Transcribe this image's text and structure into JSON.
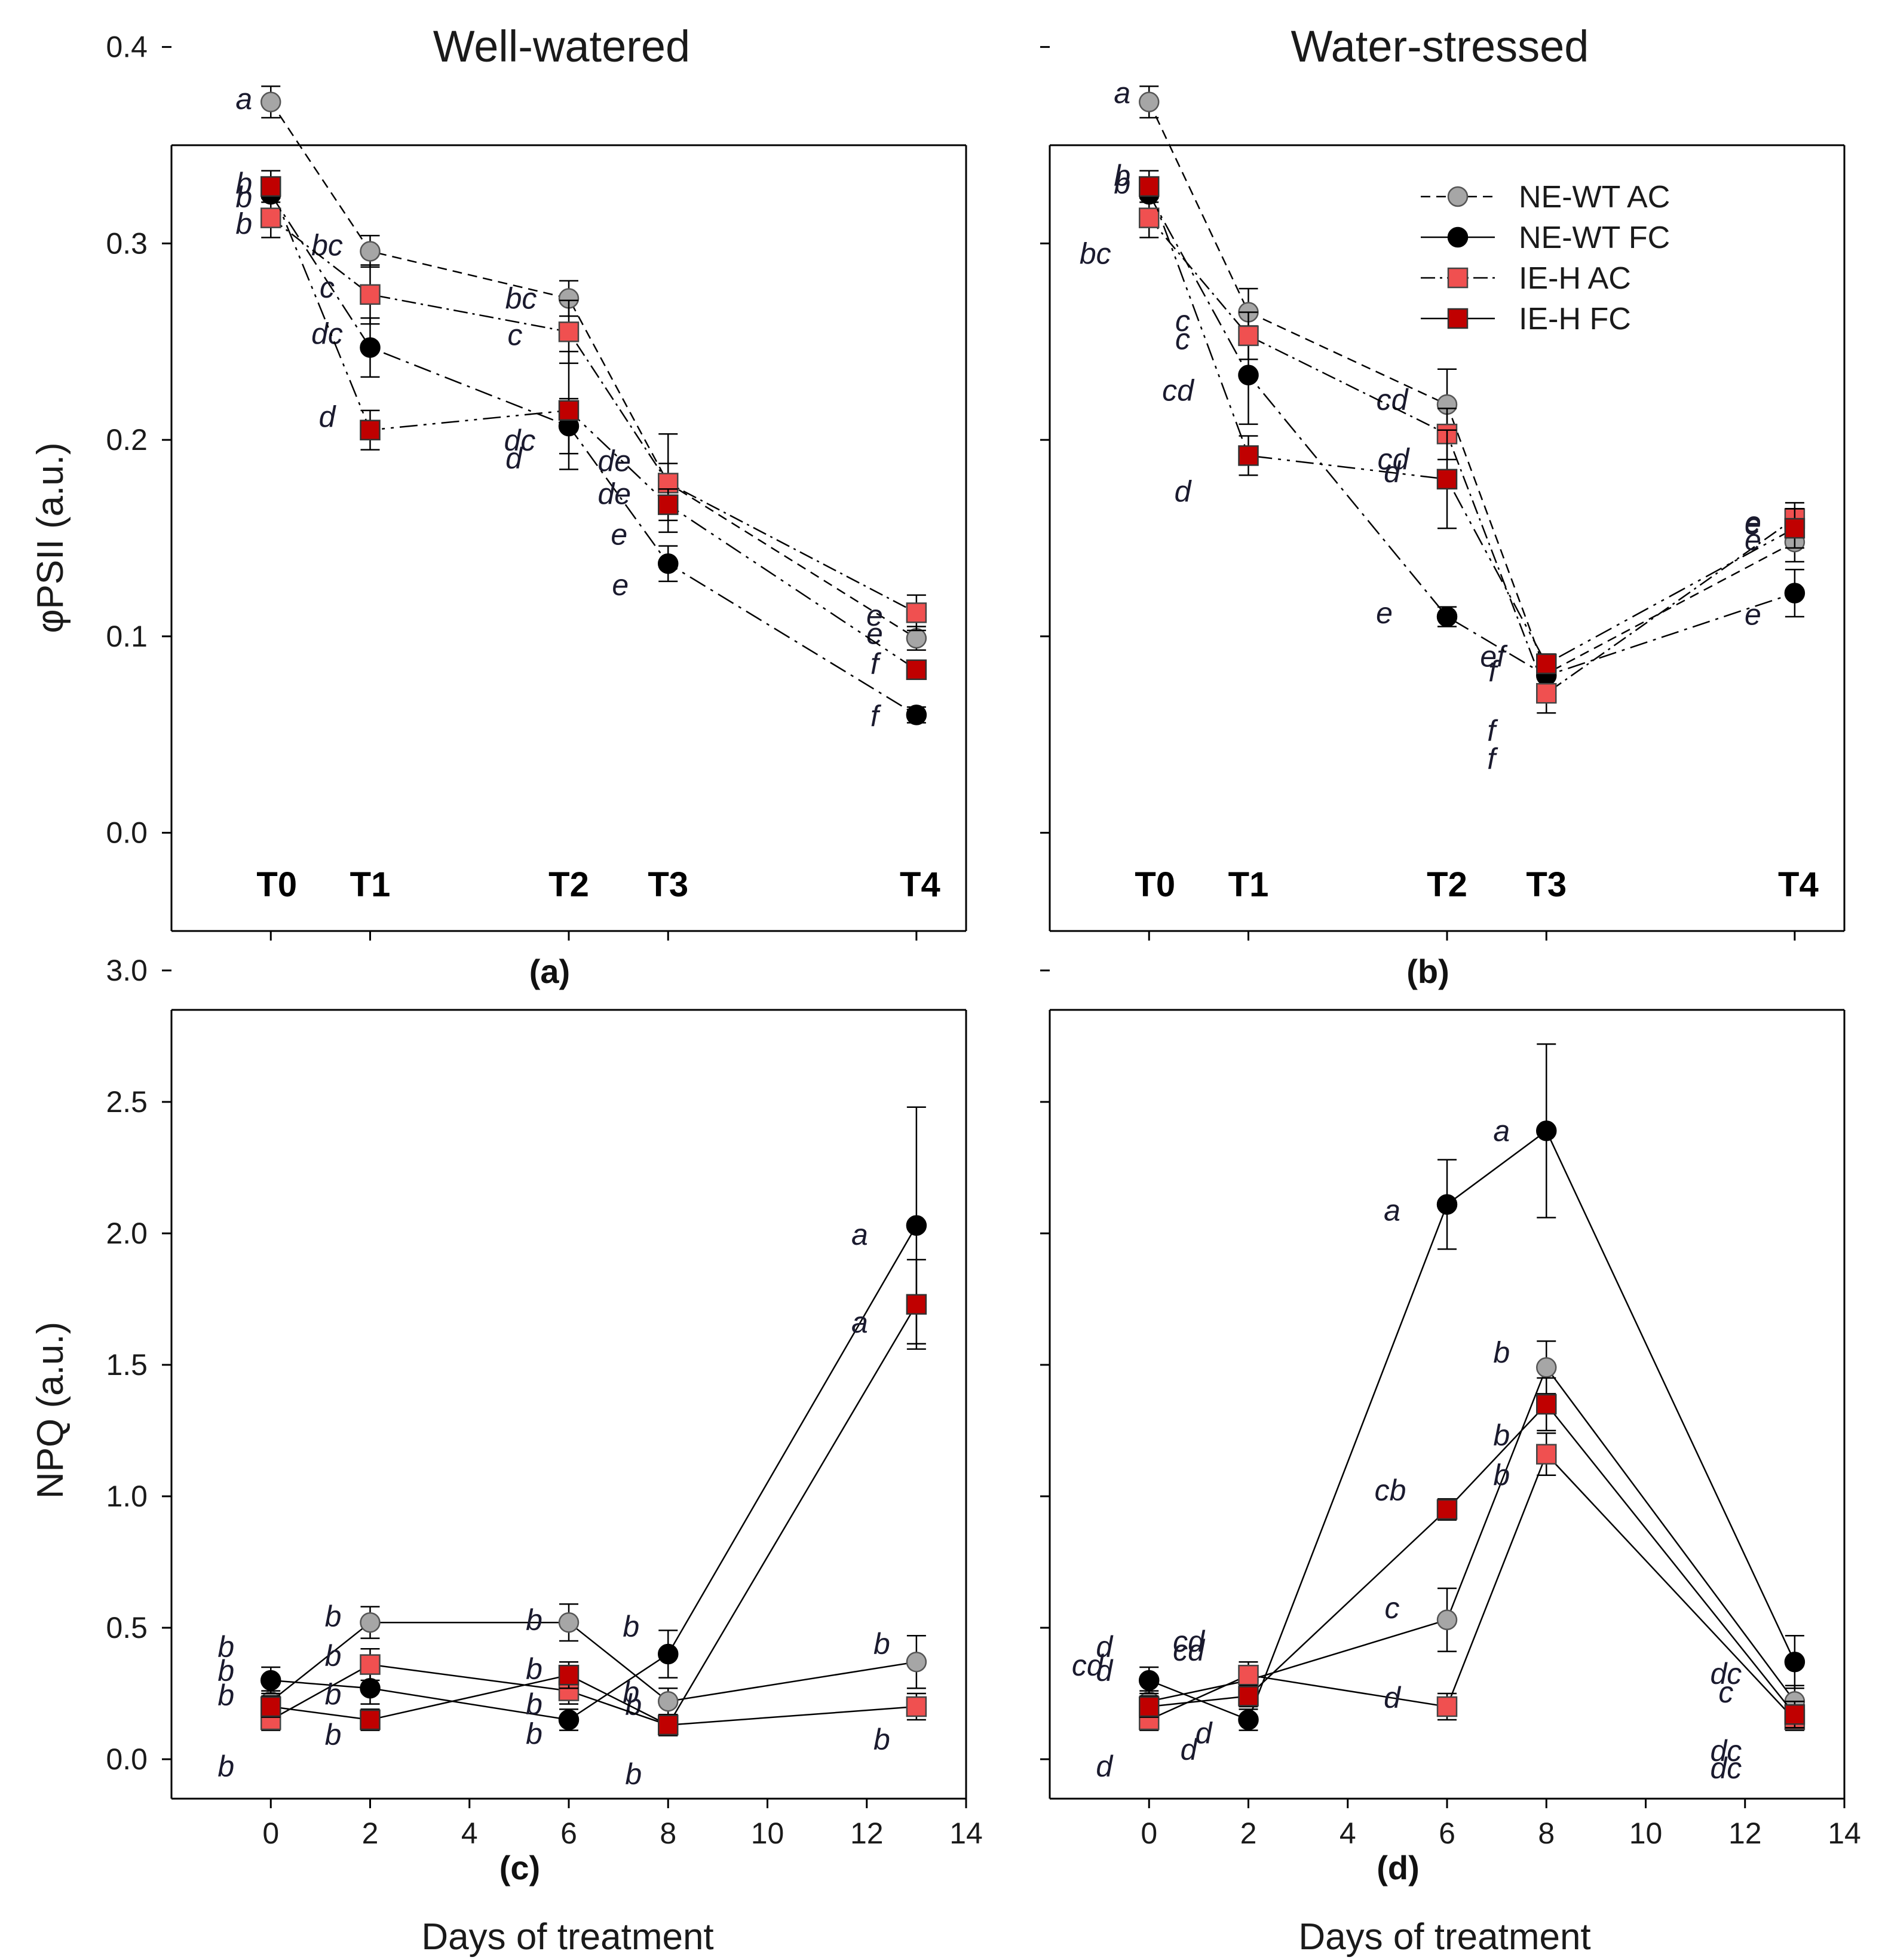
{
  "colors": {
    "ne_wt_ac": "#a6a6a6",
    "ne_wt_fc": "#000000",
    "ie_h_ac": "#f05050",
    "ie_h_fc": "#c00000"
  },
  "figure": {
    "columns": [
      "Well-watered",
      "Water-stressed"
    ],
    "legend": [
      "NE-WT AC",
      "NE-WT FC",
      "IE-H AC",
      "IE-H FC"
    ],
    "xlabel": "Days of treatment",
    "ylabel_top": "φPSII  (a.u.)",
    "ylabel_bottom": "NPQ (a.u.)",
    "panel_labels": [
      "(a)",
      "(b)",
      "(c)",
      "(d)"
    ],
    "time_labels": [
      "T0",
      "T1",
      "T2",
      "T3",
      "T4"
    ]
  },
  "chart_data": [
    {
      "panel": "(a)",
      "type": "line",
      "title": "Well-watered",
      "xlabel": "",
      "ylabel": "φPSII  (a.u.)",
      "xlim": [
        -2,
        14
      ],
      "ylim": [
        -0.05,
        0.35
      ],
      "yticks": [
        0.0,
        0.1,
        0.2,
        0.3,
        0.4
      ],
      "yticklabels": [
        "0.0",
        "0.1",
        "0.2",
        "0.3",
        "0.4"
      ],
      "x": [
        0,
        2,
        6,
        8,
        13
      ],
      "series": [
        {
          "name": "NE-WT AC",
          "values": [
            0.372,
            0.296,
            0.272,
            0.178,
            0.099
          ],
          "errors": [
            0.008,
            0.008,
            0.009,
            0.025,
            0.006
          ],
          "labels": [
            {
              "x": 0,
              "text": "a"
            },
            {
              "x": 2,
              "text": "bc"
            },
            {
              "x": 6,
              "text": "bc"
            },
            {
              "x": 8,
              "text": "de"
            },
            {
              "x": 13,
              "text": "e"
            }
          ]
        },
        {
          "name": "NE-WT FC",
          "values": [
            0.325,
            0.247,
            0.207,
            0.137,
            0.06
          ],
          "errors": [
            0.008,
            0.015,
            0.014,
            0.009,
            0.004
          ],
          "labels": [
            {
              "x": 0,
              "text": "b"
            },
            {
              "x": 2,
              "text": "dc"
            },
            {
              "x": 6,
              "text": "dc"
            },
            {
              "x": 8,
              "text": "e"
            },
            {
              "x": 13,
              "text": "f"
            }
          ]
        },
        {
          "name": "IE-H AC",
          "values": [
            0.313,
            0.274,
            0.255,
            0.178,
            0.112
          ],
          "errors": [
            0.01,
            0.015,
            0.016,
            0.01,
            0.009
          ],
          "labels": [
            {
              "x": 0,
              "text": "b"
            },
            {
              "x": 2,
              "text": "c"
            },
            {
              "x": 6,
              "text": "c"
            },
            {
              "x": 8,
              "text": "de"
            },
            {
              "x": 13,
              "text": "e"
            }
          ]
        },
        {
          "name": "IE-H FC",
          "values": [
            0.329,
            0.205,
            0.215,
            0.167,
            0.083
          ],
          "errors": [
            0.008,
            0.01,
            0.03,
            0.008,
            0.004
          ],
          "labels": [
            {
              "x": 0,
              "text": "b"
            },
            {
              "x": 2,
              "text": "d"
            },
            {
              "x": 6,
              "text": "d"
            },
            {
              "x": 8,
              "text": "e"
            },
            {
              "x": 13,
              "text": "f"
            }
          ]
        }
      ]
    },
    {
      "panel": "(b)",
      "type": "line",
      "title": "Water-stressed",
      "xlabel": "",
      "ylabel": "",
      "xlim": [
        -2,
        14
      ],
      "ylim": [
        -0.05,
        0.35
      ],
      "yticks": [
        0.0,
        0.1,
        0.2,
        0.3,
        0.4
      ],
      "yticklabels": [
        "",
        "",
        "",
        "",
        ""
      ],
      "x": [
        0,
        2,
        6,
        8,
        13
      ],
      "series": [
        {
          "name": "NE-WT AC",
          "values": [
            0.372,
            0.265,
            0.218,
            0.081,
            0.148
          ],
          "errors": [
            0.008,
            0.012,
            0.018,
            0.006,
            0.01
          ],
          "labels": [
            {
              "x": 0,
              "text": "a"
            },
            {
              "x": 2,
              "text": "c"
            },
            {
              "x": 6,
              "text": "cd"
            },
            {
              "x": 8,
              "text": "ef"
            },
            {
              "x": 13,
              "text": "e"
            }
          ]
        },
        {
          "name": "NE-WT FC",
          "values": [
            0.325,
            0.233,
            0.11,
            0.08,
            0.122
          ],
          "errors": [
            0.008,
            0.025,
            0.005,
            0.006,
            0.012
          ],
          "labels": [
            {
              "x": 0,
              "text": "b"
            },
            {
              "x": 2,
              "text": "cd"
            },
            {
              "x": 6,
              "text": "e"
            },
            {
              "x": 8,
              "text": "f"
            },
            {
              "x": 13,
              "text": "e"
            }
          ]
        },
        {
          "name": "IE-H AC",
          "values": [
            0.313,
            0.253,
            0.203,
            0.071,
            0.16
          ],
          "errors": [
            0.01,
            0.012,
            0.013,
            0.01,
            0.008
          ],
          "labels": [
            {
              "x": 0,
              "text": "bc"
            },
            {
              "x": 2,
              "text": "c"
            },
            {
              "x": 6,
              "text": "cd"
            },
            {
              "x": 8,
              "text": "f"
            },
            {
              "x": 13,
              "text": "e"
            }
          ]
        },
        {
          "name": "IE-H FC",
          "values": [
            0.329,
            0.192,
            0.18,
            0.086,
            0.155
          ],
          "errors": [
            0.008,
            0.01,
            0.025,
            0.005,
            0.01
          ],
          "labels": [
            {
              "x": 0,
              "text": "b"
            },
            {
              "x": 2,
              "text": "d"
            },
            {
              "x": 6,
              "text": "d"
            },
            {
              "x": 8,
              "text": "f"
            },
            {
              "x": 13,
              "text": "e"
            }
          ]
        }
      ]
    },
    {
      "panel": "(c)",
      "type": "line",
      "title": "",
      "xlabel": "Days of treatment",
      "ylabel": "NPQ (a.u.)",
      "xlim": [
        -2,
        14
      ],
      "ylim": [
        -0.15,
        2.85
      ],
      "xticks": [
        0,
        2,
        4,
        6,
        8,
        10,
        12,
        14
      ],
      "yticks": [
        0.0,
        0.5,
        1.0,
        1.5,
        2.0,
        2.5,
        3.0
      ],
      "yticklabels": [
        "0.0",
        "0.5",
        "1.0",
        "1.5",
        "2.0",
        "2.5",
        "3.0"
      ],
      "x": [
        0,
        2,
        6,
        8,
        13
      ],
      "series": [
        {
          "name": "NE-WT AC",
          "values": [
            0.22,
            0.52,
            0.52,
            0.22,
            0.37
          ],
          "errors": [
            0.04,
            0.06,
            0.07,
            0.05,
            0.1
          ],
          "labels": [
            {
              "x": 0,
              "text": "b"
            },
            {
              "x": 2,
              "text": "b"
            },
            {
              "x": 6,
              "text": "b"
            },
            {
              "x": 8,
              "text": "b"
            },
            {
              "x": 13,
              "text": "b"
            }
          ]
        },
        {
          "name": "NE-WT FC",
          "values": [
            0.3,
            0.27,
            0.15,
            0.4,
            2.03
          ],
          "errors": [
            0.05,
            0.06,
            0.04,
            0.09,
            0.45
          ],
          "labels": [
            {
              "x": 0,
              "text": "b"
            },
            {
              "x": 2,
              "text": "b"
            },
            {
              "x": 6,
              "text": "b"
            },
            {
              "x": 8,
              "text": "b"
            },
            {
              "x": 13,
              "text": "a"
            }
          ]
        },
        {
          "name": "IE-H AC",
          "values": [
            0.15,
            0.36,
            0.26,
            0.13,
            0.2
          ],
          "errors": [
            0.04,
            0.06,
            0.05,
            0.04,
            0.05
          ],
          "labels": [
            {
              "x": 0,
              "text": "b"
            },
            {
              "x": 2,
              "text": "b"
            },
            {
              "x": 6,
              "text": "b"
            },
            {
              "x": 8,
              "text": "b"
            },
            {
              "x": 13,
              "text": "b"
            }
          ]
        },
        {
          "name": "IE-H FC",
          "values": [
            0.2,
            0.15,
            0.32,
            0.13,
            1.73
          ],
          "errors": [
            0.04,
            0.04,
            0.05,
            0.04,
            0.17
          ],
          "labels": [
            {
              "x": 0,
              "text": "b"
            },
            {
              "x": 2,
              "text": "b"
            },
            {
              "x": 6,
              "text": "b"
            },
            {
              "x": 8,
              "text": "b"
            },
            {
              "x": 13,
              "text": "a"
            }
          ]
        }
      ]
    },
    {
      "panel": "(d)",
      "type": "line",
      "title": "",
      "xlabel": "Days of treatment",
      "ylabel": "",
      "xlim": [
        -2,
        14
      ],
      "ylim": [
        -0.15,
        2.85
      ],
      "xticks": [
        0,
        2,
        4,
        6,
        8,
        10,
        12,
        14
      ],
      "yticks": [
        0.0,
        0.5,
        1.0,
        1.5,
        2.0,
        2.5,
        3.0
      ],
      "yticklabels": [
        "",
        "",
        "",
        "",
        "",
        "",
        ""
      ],
      "x": [
        0,
        2,
        6,
        8,
        13
      ],
      "series": [
        {
          "name": "NE-WT AC",
          "values": [
            0.22,
            0.3,
            0.53,
            1.49,
            0.22
          ],
          "errors": [
            0.04,
            0.05,
            0.12,
            0.1,
            0.06
          ],
          "labels": [
            {
              "x": 0,
              "text": "cd"
            },
            {
              "x": 2,
              "text": "cd"
            },
            {
              "x": 6,
              "text": "c"
            },
            {
              "x": 8,
              "text": "b"
            },
            {
              "x": 13,
              "text": "c"
            }
          ]
        },
        {
          "name": "NE-WT FC",
          "values": [
            0.3,
            0.15,
            2.11,
            2.39,
            0.37
          ],
          "errors": [
            0.05,
            0.04,
            0.17,
            0.33,
            0.1
          ],
          "labels": [
            {
              "x": 0,
              "text": "d"
            },
            {
              "x": 2,
              "text": "d"
            },
            {
              "x": 6,
              "text": "a"
            },
            {
              "x": 8,
              "text": "a"
            },
            {
              "x": 13,
              "text": "dc"
            }
          ]
        },
        {
          "name": "IE-H AC",
          "values": [
            0.15,
            0.32,
            0.2,
            1.16,
            0.15
          ],
          "errors": [
            0.04,
            0.05,
            0.05,
            0.08,
            0.04
          ],
          "labels": [
            {
              "x": 0,
              "text": "d"
            },
            {
              "x": 2,
              "text": "cd"
            },
            {
              "x": 6,
              "text": "d"
            },
            {
              "x": 8,
              "text": "b"
            },
            {
              "x": 13,
              "text": "dc"
            }
          ]
        },
        {
          "name": "IE-H FC",
          "values": [
            0.2,
            0.24,
            0.95,
            1.35,
            0.17
          ],
          "errors": [
            0.04,
            0.04,
            0.04,
            0.1,
            0.05
          ],
          "labels": [
            {
              "x": 0,
              "text": "d"
            },
            {
              "x": 2,
              "text": "d"
            },
            {
              "x": 6,
              "text": "cb"
            },
            {
              "x": 8,
              "text": "b"
            },
            {
              "x": 13,
              "text": "dc"
            }
          ]
        }
      ]
    }
  ]
}
